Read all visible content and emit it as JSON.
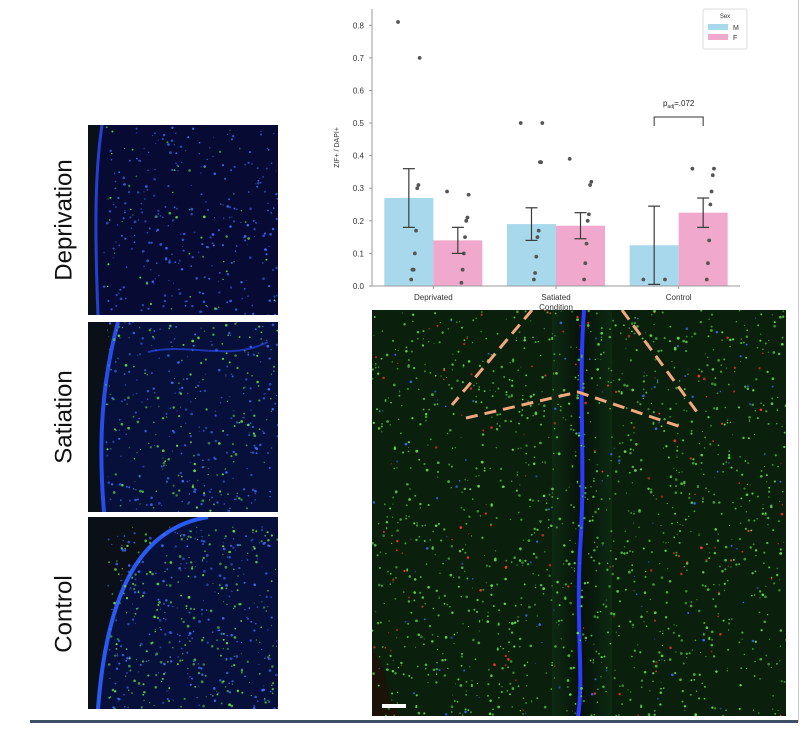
{
  "panels": [
    {
      "label": "Deprivation"
    },
    {
      "label": "Satiation"
    },
    {
      "label": "Control"
    }
  ],
  "chart_data": {
    "type": "bar",
    "xlabel": "Condition",
    "ylabel": "ZIF+ / DAPI+",
    "categories": [
      "Deprivated",
      "Satiated",
      "Control"
    ],
    "ylim": [
      0,
      0.85
    ],
    "yticks": [
      "0.0",
      "0.1",
      "0.2",
      "0.3",
      "0.4",
      "0.5",
      "0.6",
      "0.7",
      "0.8"
    ],
    "legend": {
      "title": "Sex",
      "placement": "top-right"
    },
    "series": [
      {
        "name": "M",
        "color": "#a8d8ec",
        "values": [
          0.27,
          0.19,
          0.125
        ],
        "err": [
          0.09,
          0.05,
          0.12
        ],
        "points": [
          [
            0.81,
            0.7,
            0.31,
            0.3,
            0.17,
            0.1,
            0.05,
            0.05,
            0.02
          ],
          [
            0.5,
            0.5,
            0.38,
            0.38,
            0.17,
            0.15,
            0.09,
            0.04,
            0.02
          ],
          [
            0.02,
            0.02
          ]
        ]
      },
      {
        "name": "F",
        "color": "#f0a9cc",
        "values": [
          0.14,
          0.185,
          0.225
        ],
        "err": [
          0.04,
          0.04,
          0.045
        ],
        "points": [
          [
            0.29,
            0.28,
            0.21,
            0.2,
            0.15,
            0.1,
            0.05,
            0.01
          ],
          [
            0.39,
            0.32,
            0.31,
            0.22,
            0.2,
            0.13,
            0.07,
            0.02
          ],
          [
            0.36,
            0.36,
            0.34,
            0.29,
            0.25,
            0.14,
            0.07,
            0.02
          ]
        ]
      }
    ],
    "annotation": {
      "text": ".072",
      "p_label": "p",
      "p_sub": "adj",
      "category": "Control"
    }
  }
}
